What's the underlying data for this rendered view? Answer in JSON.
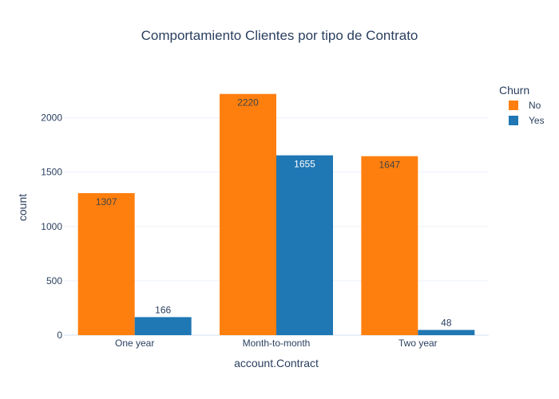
{
  "chart_data": {
    "type": "bar",
    "title": "Comportamiento Clientes por tipo de Contrato",
    "xlabel": "account.Contract",
    "ylabel": "count",
    "categories": [
      "One year",
      "Month-to-month",
      "Two year"
    ],
    "ylim": [
      0,
      2350
    ],
    "yticks": [
      0,
      500,
      1000,
      1500,
      2000
    ],
    "grid": true,
    "legend": {
      "title": "Churn",
      "placement": "top-right"
    },
    "series": [
      {
        "name": "No",
        "color": "#ff7f0e",
        "values": [
          1307,
          2220,
          1647
        ]
      },
      {
        "name": "Yes",
        "color": "#1f77b4",
        "values": [
          166,
          1655,
          48
        ]
      }
    ]
  }
}
